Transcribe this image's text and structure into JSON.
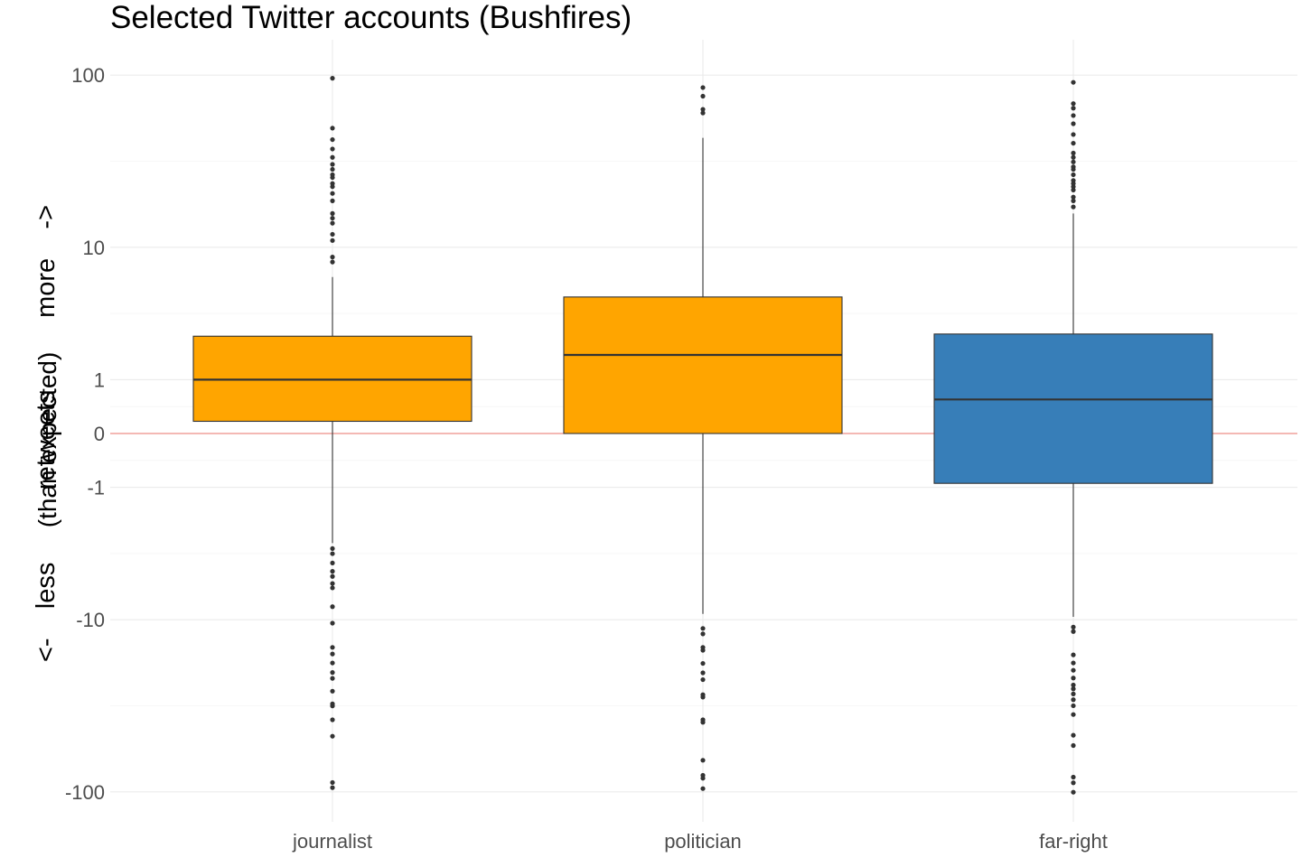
{
  "chart_data": {
    "type": "box",
    "title": "Selected Twitter accounts (Bushfires)",
    "xlabel": "",
    "ylabel_lines": [
      "<-    less          retweets          more    ->",
      "(than expected)"
    ],
    "y_scale": "pseudo-log (signed log10 of |y|+1)",
    "y_ticks": [
      -100,
      -10,
      -1,
      0,
      1,
      10,
      100
    ],
    "y_tick_labels": [
      "-100",
      "-10",
      "-1",
      "0",
      "1",
      "10",
      "100"
    ],
    "reference_line": {
      "y": 0,
      "color": "#e8706a"
    },
    "grid": true,
    "legend": "none",
    "categories": [
      "journalist",
      "politician",
      "far-right"
    ],
    "boxes": [
      {
        "category": "journalist",
        "fill": "#ffa500",
        "whisker_low": -3.1,
        "q1": 0.17,
        "median": 1.0,
        "q3": 2.5,
        "whisker_high": 6.5,
        "outliers": [
          96,
          50,
          43,
          38,
          34,
          31,
          29,
          27,
          26,
          24,
          23,
          21,
          19,
          16,
          15,
          14,
          12,
          11,
          8.7,
          8.1,
          -3.4,
          -3.7,
          -4.3,
          -4.9,
          -5.3,
          -5.9,
          -6.3,
          -8.3,
          -10.5,
          -14.7,
          -16.1,
          -18.2,
          -20.7,
          -22.4,
          -26.6,
          -31.5,
          -32.4,
          -38.9,
          -48.3,
          -88.5,
          -94.6
        ]
      },
      {
        "category": "politician",
        "fill": "#ffa500",
        "whisker_low": -9.2,
        "q1": 0,
        "median": 1.75,
        "q3": 4.8,
        "whisker_high": 44,
        "outliers": [
          85,
          76,
          64,
          61,
          -11.3,
          -12.2,
          -14.7,
          -15.3,
          -18.3,
          -20.8,
          -22.8,
          -27.9,
          -28.8,
          -38.9,
          -40.2,
          -66.2,
          -80.6,
          -83.7,
          -95.8
        ]
      },
      {
        "category": "far-right",
        "fill": "#377eb8",
        "whisker_low": -9.6,
        "q1": -0.9,
        "median": 0.55,
        "q3": 2.6,
        "whisker_high": 16,
        "outliers": [
          91,
          69,
          65,
          59,
          53,
          46,
          41,
          36,
          34,
          32,
          30,
          29,
          27,
          25,
          24,
          23,
          22,
          20,
          19,
          17.5,
          -11.1,
          -11.8,
          -16.3,
          -18.2,
          -20.1,
          -22.3,
          -24.5,
          -25.8,
          -27.6,
          -29.8,
          -32.3,
          -36.3,
          -47.7,
          -54.6,
          -82.5,
          -88.8,
          -100.4
        ]
      }
    ]
  }
}
